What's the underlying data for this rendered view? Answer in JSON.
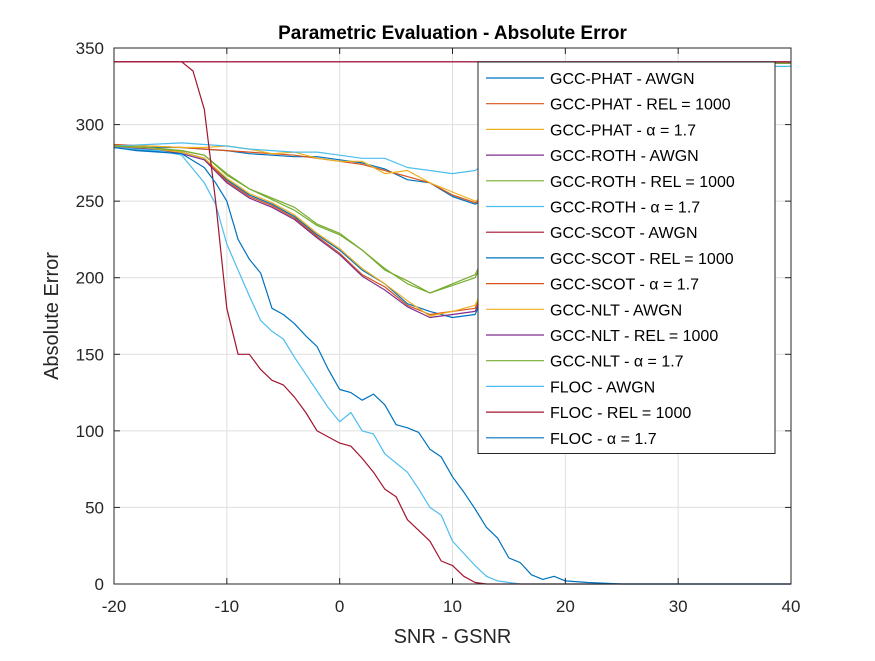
{
  "chart_data": {
    "type": "line",
    "title": "Parametric Evaluation - Absolute Error",
    "xlabel": "SNR - GSNR",
    "ylabel": "Absolute Error",
    "xlim": [
      -20,
      40
    ],
    "ylim": [
      0,
      350
    ],
    "xticks": [
      -20,
      -10,
      0,
      10,
      20,
      30,
      40
    ],
    "yticks": [
      0,
      50,
      100,
      150,
      200,
      250,
      300,
      350
    ],
    "grid": true,
    "legend_position": "top-right",
    "series": [
      {
        "name": "GCC-PHAT - AWGN",
        "color": "#0072BD",
        "x": [
          -20,
          -17,
          -14,
          -12,
          -10,
          -8,
          -6,
          -4,
          -2,
          0,
          2,
          4,
          6,
          8,
          10,
          12,
          14,
          16,
          18,
          20,
          25,
          30,
          35,
          40
        ],
        "y": [
          287,
          285,
          285,
          284,
          283,
          281,
          280,
          279,
          279,
          277,
          275,
          271,
          264,
          262,
          253,
          248,
          255,
          285,
          310,
          335,
          340,
          340,
          340,
          340
        ]
      },
      {
        "name": "GCC-PHAT - REL = 1000",
        "color": "#D95319",
        "x": [
          -20,
          -17,
          -14,
          -12,
          -10,
          -8,
          -6,
          -4,
          -2,
          0,
          2,
          4,
          6,
          8,
          10,
          12,
          14,
          16,
          18,
          20,
          25,
          30,
          35,
          40
        ],
        "y": [
          287,
          286,
          285,
          284,
          283,
          282,
          281,
          280,
          278,
          276,
          274,
          270,
          266,
          262,
          254,
          249,
          256,
          286,
          311,
          336,
          340,
          340,
          340,
          340
        ]
      },
      {
        "name": "GCC-PHAT - α = 1.7",
        "color": "#EDB120",
        "x": [
          -20,
          -17,
          -14,
          -12,
          -10,
          -8,
          -6,
          -4,
          -2,
          0,
          2,
          4,
          6,
          8,
          10,
          12,
          14,
          16,
          18,
          20,
          25,
          30,
          35,
          40
        ],
        "y": [
          286,
          286,
          285,
          285,
          286,
          284,
          281,
          282,
          278,
          276,
          276,
          268,
          270,
          262,
          256,
          250,
          258,
          287,
          312,
          336,
          340,
          340,
          340,
          340
        ]
      },
      {
        "name": "GCC-ROTH - AWGN",
        "color": "#7E2F8E",
        "x": [
          -20,
          -14,
          -10,
          -5,
          0,
          5,
          10,
          15,
          20,
          25,
          30,
          35,
          40
        ],
        "y": [
          341,
          341,
          341,
          341,
          341,
          341,
          341,
          341,
          341,
          341,
          341,
          341,
          341
        ]
      },
      {
        "name": "GCC-ROTH - REL = 1000",
        "color": "#77AC30",
        "x": [
          -20,
          -17,
          -14,
          -12,
          -10,
          -8,
          -6,
          -4,
          -2,
          0,
          2,
          4,
          6,
          8,
          10,
          12,
          14,
          16,
          18,
          20,
          25,
          30,
          35,
          40
        ],
        "y": [
          285,
          284,
          283,
          280,
          268,
          258,
          251,
          244,
          234,
          228,
          218,
          205,
          198,
          190,
          195,
          200,
          230,
          280,
          320,
          338,
          340,
          340,
          340,
          340
        ]
      },
      {
        "name": "GCC-ROTH - α = 1.7",
        "color": "#4DBEEE",
        "x": [
          -20,
          -17,
          -14,
          -12,
          -10,
          -8,
          -6,
          -4,
          -2,
          0,
          2,
          4,
          6,
          8,
          10,
          12,
          14,
          16,
          18,
          20,
          25,
          30,
          35,
          40
        ],
        "y": [
          286,
          287,
          288,
          287,
          286,
          284,
          283,
          282,
          282,
          280,
          278,
          278,
          272,
          270,
          268,
          270,
          280,
          300,
          320,
          335,
          338,
          338,
          338,
          338
        ]
      },
      {
        "name": "GCC-SCOT - AWGN",
        "color": "#A2142F",
        "x": [
          -20,
          -14,
          -10,
          -5,
          0,
          5,
          10,
          15,
          20,
          25,
          30,
          35,
          40
        ],
        "y": [
          341,
          341,
          341,
          341,
          341,
          341,
          341,
          341,
          341,
          341,
          341,
          341,
          341
        ]
      },
      {
        "name": "GCC-SCOT - REL = 1000",
        "color": "#0072BD",
        "x": [
          -20,
          -17,
          -14,
          -12,
          -10,
          -8,
          -6,
          -4,
          -2,
          0,
          2,
          4,
          6,
          8,
          10,
          12,
          14,
          16,
          18,
          20,
          25,
          30,
          35,
          40
        ],
        "y": [
          285,
          283,
          282,
          278,
          264,
          254,
          248,
          240,
          228,
          218,
          205,
          196,
          183,
          178,
          174,
          176,
          210,
          270,
          315,
          336,
          340,
          340,
          340,
          340
        ]
      },
      {
        "name": "GCC-SCOT - α = 1.7",
        "color": "#D95319",
        "x": [
          -20,
          -17,
          -14,
          -12,
          -10,
          -8,
          -6,
          -4,
          -2,
          0,
          2,
          4,
          6,
          8,
          10,
          12,
          14,
          16,
          18,
          20,
          25,
          30,
          35,
          40
        ],
        "y": [
          286,
          284,
          282,
          278,
          263,
          253,
          247,
          239,
          227,
          216,
          202,
          194,
          182,
          176,
          178,
          180,
          212,
          271,
          316,
          337,
          340,
          340,
          340,
          340
        ]
      },
      {
        "name": "GCC-NLT - AWGN",
        "color": "#EDB120",
        "x": [
          -20,
          -17,
          -14,
          -12,
          -10,
          -8,
          -6,
          -4,
          -2,
          0,
          2,
          4,
          6,
          8,
          10,
          12,
          14,
          16,
          18,
          20,
          25,
          30,
          35,
          40
        ],
        "y": [
          286,
          284,
          282,
          278,
          265,
          255,
          249,
          241,
          229,
          219,
          206,
          196,
          185,
          175,
          178,
          182,
          214,
          272,
          317,
          337,
          340,
          340,
          340,
          340
        ]
      },
      {
        "name": "GCC-NLT - REL = 1000",
        "color": "#7E2F8E",
        "x": [
          -20,
          -17,
          -14,
          -12,
          -10,
          -8,
          -6,
          -4,
          -2,
          0,
          2,
          4,
          6,
          8,
          10,
          12,
          14,
          16,
          18,
          20,
          25,
          30,
          35,
          40
        ],
        "y": [
          285,
          284,
          281,
          277,
          262,
          252,
          246,
          238,
          226,
          215,
          201,
          192,
          181,
          174,
          176,
          178,
          211,
          270,
          315,
          336,
          340,
          340,
          340,
          340
        ]
      },
      {
        "name": "GCC-NLT - α = 1.7",
        "color": "#77AC30",
        "x": [
          -20,
          -17,
          -14,
          -12,
          -10,
          -8,
          -6,
          -4,
          -2,
          0,
          2,
          4,
          6,
          8,
          10,
          12,
          14,
          16,
          18,
          20,
          25,
          30,
          35,
          40
        ],
        "y": [
          286,
          285,
          283,
          280,
          267,
          258,
          252,
          246,
          235,
          229,
          218,
          206,
          196,
          190,
          196,
          202,
          232,
          282,
          321,
          338,
          340,
          340,
          340,
          340
        ]
      },
      {
        "name": "FLOC - AWGN",
        "color": "#4DBEEE",
        "x": [
          -20,
          -18,
          -16,
          -14,
          -12,
          -11,
          -10,
          -9,
          -8,
          -7,
          -6,
          -5,
          -4,
          -3,
          -2,
          -1,
          0,
          1,
          2,
          3,
          4,
          5,
          6,
          7,
          8,
          9,
          10,
          11,
          12,
          13,
          14,
          15,
          16,
          18,
          20,
          25,
          30,
          35,
          40
        ],
        "y": [
          285,
          284,
          283,
          280,
          262,
          248,
          222,
          205,
          188,
          172,
          165,
          160,
          148,
          137,
          126,
          115,
          106,
          112,
          100,
          98,
          85,
          79,
          73,
          62,
          50,
          45,
          28,
          20,
          12,
          5,
          2,
          1,
          0,
          0,
          0,
          0,
          0,
          0,
          0
        ]
      },
      {
        "name": "FLOC - REL = 1000",
        "color": "#A2142F",
        "x": [
          -20,
          -18,
          -16,
          -14,
          -13,
          -12,
          -11,
          -10,
          -9,
          -8,
          -7,
          -6,
          -5,
          -4,
          -3,
          -2,
          -1,
          0,
          1,
          2,
          3,
          4,
          5,
          6,
          7,
          8,
          9,
          10,
          11,
          12,
          13,
          14,
          15,
          16,
          18,
          20,
          25,
          30,
          35,
          40
        ],
        "y": [
          341,
          341,
          341,
          341,
          335,
          310,
          250,
          180,
          150,
          150,
          140,
          133,
          130,
          122,
          112,
          100,
          96,
          92,
          90,
          82,
          73,
          62,
          57,
          42,
          35,
          28,
          15,
          12,
          5,
          1,
          0,
          0,
          0,
          0,
          0,
          0,
          0,
          0,
          0,
          0
        ]
      },
      {
        "name": "FLOC - α = 1.7",
        "color": "#0072BD",
        "x": [
          -20,
          -18,
          -16,
          -14,
          -12,
          -11,
          -10,
          -9,
          -8,
          -7,
          -6,
          -5,
          -4,
          -3,
          -2,
          -1,
          0,
          1,
          2,
          3,
          4,
          5,
          6,
          7,
          8,
          9,
          10,
          11,
          12,
          13,
          14,
          15,
          16,
          17,
          18,
          19,
          20,
          22,
          25,
          30,
          35,
          40
        ],
        "y": [
          285,
          283,
          282,
          281,
          272,
          262,
          250,
          225,
          212,
          203,
          180,
          176,
          170,
          162,
          155,
          140,
          127,
          125,
          120,
          124,
          117,
          104,
          102,
          99,
          88,
          83,
          70,
          60,
          49,
          37,
          30,
          17,
          14,
          6,
          3,
          5,
          2,
          1,
          0,
          0,
          0,
          0
        ]
      }
    ]
  }
}
